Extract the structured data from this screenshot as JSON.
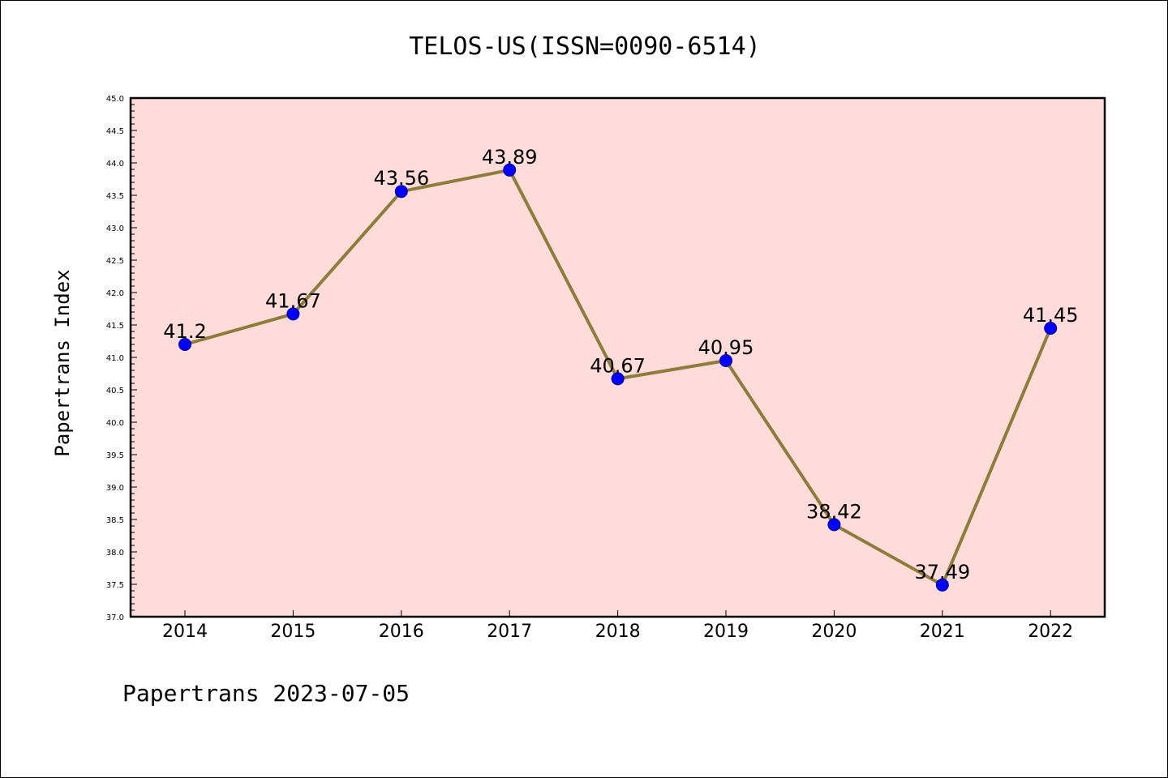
{
  "chart_data": {
    "type": "line",
    "title": "TELOS-US(ISSN=0090-6514)",
    "ylabel": "Papertrans Index",
    "xlabel": "",
    "categories": [
      "2014",
      "2015",
      "2016",
      "2017",
      "2018",
      "2019",
      "2020",
      "2021",
      "2022"
    ],
    "series": [
      {
        "values": [
          41.2,
          41.67,
          43.56,
          43.89,
          40.67,
          40.95,
          38.42,
          37.49,
          41.45
        ],
        "labels": [
          "41.2",
          "41.67",
          "43.56",
          "43.89",
          "40.67",
          "40.95",
          "38.42",
          "37.49",
          "41.45"
        ]
      }
    ],
    "ylim": [
      37.0,
      45.0
    ],
    "yticks": [
      "37.0",
      "37.5",
      "38.0",
      "38.5",
      "39.0",
      "39.5",
      "40.0",
      "40.5",
      "41.0",
      "41.5",
      "42.0",
      "42.5",
      "43.0",
      "43.5",
      "44.0",
      "44.5",
      "45.0"
    ],
    "grid": false,
    "colors": {
      "plot_background": "#FFDCDA",
      "line": "#8E7C3B",
      "marker": "#0000FF"
    }
  },
  "footer": "Papertrans 2023-07-05"
}
